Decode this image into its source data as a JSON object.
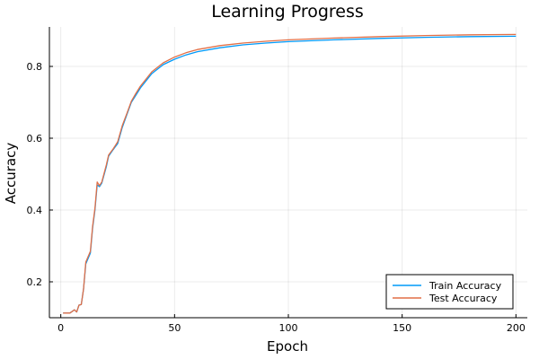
{
  "chart_data": {
    "type": "line",
    "title": "Learning Progress",
    "xlabel": "Epoch",
    "ylabel": "Accuracy",
    "xlim": [
      -5,
      205
    ],
    "ylim": [
      0.1,
      0.91
    ],
    "xticks": [
      0,
      50,
      100,
      150,
      200
    ],
    "yticks": [
      0.2,
      0.4,
      0.6,
      0.8
    ],
    "grid": true,
    "legend_position": "bottom-right",
    "series": [
      {
        "name": "Train Accuracy",
        "color": "#009af9",
        "points": [
          [
            1,
            0.113
          ],
          [
            4,
            0.113
          ],
          [
            6,
            0.122
          ],
          [
            7,
            0.116
          ],
          [
            8,
            0.135
          ],
          [
            9,
            0.137
          ],
          [
            10,
            0.18
          ],
          [
            11,
            0.25
          ],
          [
            13,
            0.28
          ],
          [
            14,
            0.35
          ],
          [
            15,
            0.4
          ],
          [
            16,
            0.47
          ],
          [
            17,
            0.465
          ],
          [
            18,
            0.475
          ],
          [
            20,
            0.52
          ],
          [
            21,
            0.55
          ],
          [
            23,
            0.568
          ],
          [
            25,
            0.585
          ],
          [
            27,
            0.63
          ],
          [
            29,
            0.665
          ],
          [
            31,
            0.7
          ],
          [
            33,
            0.72
          ],
          [
            35,
            0.74
          ],
          [
            40,
            0.78
          ],
          [
            45,
            0.805
          ],
          [
            50,
            0.82
          ],
          [
            55,
            0.832
          ],
          [
            60,
            0.841
          ],
          [
            70,
            0.852
          ],
          [
            80,
            0.86
          ],
          [
            90,
            0.865
          ],
          [
            100,
            0.869
          ],
          [
            120,
            0.874
          ],
          [
            140,
            0.878
          ],
          [
            160,
            0.881
          ],
          [
            180,
            0.883
          ],
          [
            200,
            0.884
          ]
        ]
      },
      {
        "name": "Test Accuracy",
        "color": "#e26f46",
        "points": [
          [
            1,
            0.113
          ],
          [
            4,
            0.113
          ],
          [
            6,
            0.122
          ],
          [
            7,
            0.116
          ],
          [
            8,
            0.135
          ],
          [
            9,
            0.137
          ],
          [
            10,
            0.18
          ],
          [
            11,
            0.255
          ],
          [
            13,
            0.285
          ],
          [
            14,
            0.355
          ],
          [
            15,
            0.405
          ],
          [
            16,
            0.478
          ],
          [
            17,
            0.468
          ],
          [
            18,
            0.478
          ],
          [
            20,
            0.525
          ],
          [
            21,
            0.553
          ],
          [
            23,
            0.57
          ],
          [
            25,
            0.59
          ],
          [
            27,
            0.635
          ],
          [
            29,
            0.668
          ],
          [
            31,
            0.703
          ],
          [
            33,
            0.725
          ],
          [
            35,
            0.745
          ],
          [
            40,
            0.785
          ],
          [
            45,
            0.81
          ],
          [
            50,
            0.826
          ],
          [
            55,
            0.838
          ],
          [
            60,
            0.847
          ],
          [
            70,
            0.858
          ],
          [
            80,
            0.865
          ],
          [
            90,
            0.87
          ],
          [
            100,
            0.874
          ],
          [
            120,
            0.879
          ],
          [
            140,
            0.883
          ],
          [
            160,
            0.886
          ],
          [
            180,
            0.888
          ],
          [
            200,
            0.889
          ]
        ]
      }
    ]
  }
}
